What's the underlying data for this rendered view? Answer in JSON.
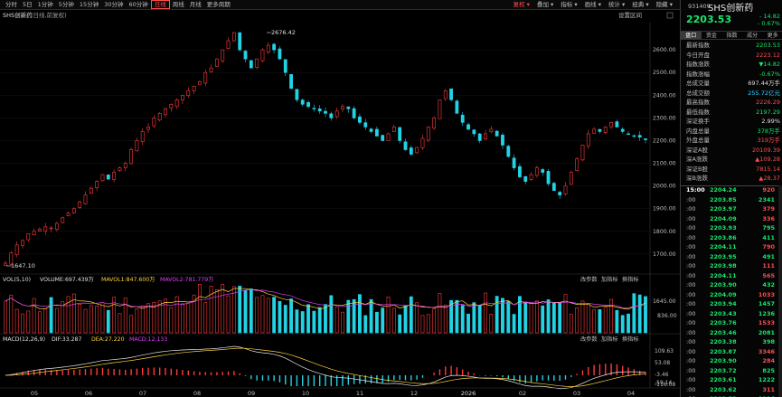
{
  "toolbar": {
    "periods": [
      "分时",
      "5日",
      "1分钟",
      "5分钟",
      "15分钟",
      "30分钟",
      "60分钟",
      "日线",
      "周线",
      "月线",
      "更多周期"
    ],
    "active_period": "日线",
    "right_buttons": [
      "复权",
      "叠加",
      "指标",
      "画线",
      "统计",
      "经典",
      "隐藏"
    ],
    "red_button": "复权"
  },
  "chart": {
    "title": "SHS创新药",
    "subtitle": "(日线,前复权)",
    "settings_label": "设置区间",
    "high_label": "2676.42",
    "low_label": "1647.10",
    "price_axis": [
      "2600.00",
      "2500.00",
      "2400.00",
      "2300.00",
      "2200.00",
      "2100.00",
      "2000.00",
      "1900.00",
      "1800.00",
      "1700.00"
    ],
    "vol_legend": {
      "name": "VOL(5,10)",
      "volume": "VOLUME:697.439万",
      "ma5": "MAVOL1:847.600万",
      "ma10": "MAVOL2:781.779万"
    },
    "vol_axis": [
      "1645.00",
      "836.00"
    ],
    "vol_controls": [
      "改参数",
      "加指标",
      "换指标"
    ],
    "macd_legend": {
      "name": "MACD(12,26,9)",
      "dif": "DIF:33.287",
      "dea": "DEA:27.220",
      "macd": "MACD:12.133"
    },
    "macd_axis": [
      "109.63",
      "53.08",
      "-3.46",
      "-59.14",
      "-116.08"
    ],
    "macd_controls": [
      "改参数",
      "加指标",
      "换指标"
    ],
    "x_axis": [
      "05",
      "06",
      "07",
      "08",
      "09",
      "10",
      "11",
      "12",
      "2026",
      "02",
      "03",
      "04"
    ]
  },
  "chart_data": {
    "type": "candlestick",
    "ylim": [
      1620,
      2720
    ],
    "close_path": [
      1660,
      1705,
      1740,
      1760,
      1790,
      1800,
      1810,
      1820,
      1815,
      1835,
      1860,
      1880,
      1900,
      1930,
      1960,
      1990,
      2020,
      2050,
      2030,
      2060,
      2080,
      2100,
      2160,
      2200,
      2240,
      2260,
      2300,
      2320,
      2340,
      2360,
      2380,
      2400,
      2420,
      2440,
      2460,
      2500,
      2520,
      2560,
      2600,
      2640,
      2676,
      2600,
      2560,
      2520,
      2560,
      2600,
      2620,
      2600,
      2560,
      2500,
      2430,
      2380,
      2360,
      2350,
      2340,
      2330,
      2320,
      2300,
      2330,
      2350,
      2340,
      2300,
      2280,
      2260,
      2240,
      2220,
      2200,
      2230,
      2260,
      2200,
      2160,
      2140,
      2170,
      2210,
      2260,
      2300,
      2380,
      2420,
      2380,
      2320,
      2280,
      2250,
      2230,
      2200,
      2230,
      2250,
      2220,
      2180,
      2130,
      2080,
      2040,
      2020,
      2050,
      2080,
      2060,
      2010,
      1980,
      1960,
      2000,
      2060,
      2120,
      2180,
      2230,
      2250,
      2240,
      2260,
      2280,
      2260,
      2240,
      2230,
      2220,
      2215,
      2204
    ],
    "price_high": 2676.42,
    "price_low": 1647.1,
    "volume_mavol": [
      847.6,
      781.779
    ],
    "macd": {
      "dif": 33.287,
      "dea": 27.22,
      "macd": 12.133
    }
  },
  "panel": {
    "code": "931409",
    "name": "SHS创新药",
    "price": "2203.53",
    "change": "- 14.82",
    "change_pct": "- 0.67%",
    "tabs": [
      "盘口",
      "资金",
      "指数",
      "成分",
      "更多"
    ],
    "active_tab": "盘口",
    "stats": [
      {
        "label": "最新指数",
        "value": "2203.53",
        "color": "green"
      },
      {
        "label": "今日开盘",
        "value": "2223.12",
        "color": "red"
      },
      {
        "label": "指数涨跌",
        "value": "▼14.82",
        "color": "green"
      },
      {
        "label": "指数涨幅",
        "value": "-0.67%",
        "color": "green"
      },
      {
        "label": "总成交量",
        "value": "697.44万手",
        "color": "white"
      },
      {
        "label": "总成交额",
        "value": "255.72亿元",
        "color": "cyan"
      },
      {
        "label": "最高指数",
        "value": "2226.29",
        "color": "red"
      },
      {
        "label": "最低指数",
        "value": "2197.29",
        "color": "green"
      },
      {
        "label": "深证换手",
        "value": "2.99%",
        "color": "white"
      },
      {
        "label": "内盘总量",
        "value": "378万手",
        "color": "green"
      },
      {
        "label": "外盘总量",
        "value": "319万手",
        "color": "red"
      },
      {
        "label": "深证A股",
        "value": "20109.39",
        "color": "red"
      },
      {
        "label": "深A涨跌",
        "value": "▲109.28",
        "color": "red"
      },
      {
        "label": "深证B股",
        "value": "7815.14",
        "color": "red"
      },
      {
        "label": "深B涨跌",
        "value": "▲28.37",
        "color": "red"
      }
    ],
    "ticks": [
      {
        "t": "15:00",
        "p": "2204.24",
        "v": "920",
        "pc": "green",
        "vc": "red"
      },
      {
        "t": ":00",
        "p": "2203.85",
        "v": "2341",
        "pc": "green",
        "vc": "green"
      },
      {
        "t": ":00",
        "p": "2203.97",
        "v": "379",
        "pc": "green",
        "vc": "red"
      },
      {
        "t": ":00",
        "p": "2204.09",
        "v": "336",
        "pc": "green",
        "vc": "red"
      },
      {
        "t": ":00",
        "p": "2203.93",
        "v": "795",
        "pc": "green",
        "vc": "green"
      },
      {
        "t": ":00",
        "p": "2203.86",
        "v": "411",
        "pc": "green",
        "vc": "green"
      },
      {
        "t": ":00",
        "p": "2204.11",
        "v": "790",
        "pc": "green",
        "vc": "red"
      },
      {
        "t": ":00",
        "p": "2203.95",
        "v": "491",
        "pc": "green",
        "vc": "green"
      },
      {
        "t": ":00",
        "p": "2203.98",
        "v": "111",
        "pc": "green",
        "vc": "red"
      },
      {
        "t": ":00",
        "p": "2204.11",
        "v": "565",
        "pc": "green",
        "vc": "red"
      },
      {
        "t": ":00",
        "p": "2203.90",
        "v": "432",
        "pc": "green",
        "vc": "green"
      },
      {
        "t": ":00",
        "p": "2204.09",
        "v": "1033",
        "pc": "green",
        "vc": "red"
      },
      {
        "t": ":00",
        "p": "2203.94",
        "v": "1457",
        "pc": "green",
        "vc": "green"
      },
      {
        "t": ":00",
        "p": "2203.43",
        "v": "1236",
        "pc": "green",
        "vc": "green"
      },
      {
        "t": ":00",
        "p": "2203.76",
        "v": "1533",
        "pc": "green",
        "vc": "red"
      },
      {
        "t": ":00",
        "p": "2203.46",
        "v": "2081",
        "pc": "green",
        "vc": "green"
      },
      {
        "t": ":00",
        "p": "2203.38",
        "v": "398",
        "pc": "green",
        "vc": "green"
      },
      {
        "t": ":00",
        "p": "2203.87",
        "v": "3346",
        "pc": "green",
        "vc": "red"
      },
      {
        "t": ":00",
        "p": "2203.90",
        "v": "284",
        "pc": "green",
        "vc": "red"
      },
      {
        "t": ":00",
        "p": "2203.72",
        "v": "825",
        "pc": "green",
        "vc": "green"
      },
      {
        "t": ":00",
        "p": "2203.61",
        "v": "1222",
        "pc": "green",
        "vc": "green"
      },
      {
        "t": ":00",
        "p": "2203.62",
        "v": "311",
        "pc": "green",
        "vc": "red"
      },
      {
        "t": ":00",
        "p": "2203.53",
        "v": "1116",
        "pc": "green",
        "vc": "green"
      }
    ]
  }
}
